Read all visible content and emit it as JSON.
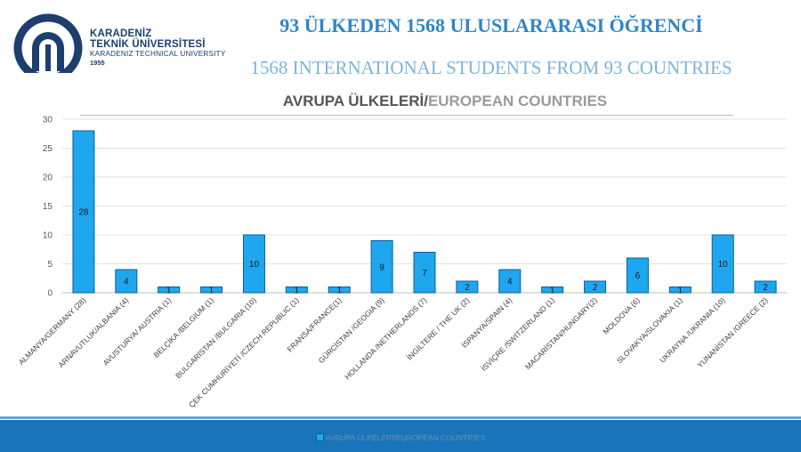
{
  "header": {
    "logo": {
      "line1": "KARADENİZ",
      "line2": "TEKNİK ÜNİVERSİTESİ",
      "line3": "KARADENIZ TECHNICAL UNIVERSITY",
      "line4": "1955"
    },
    "title_tr": "93 ÜLKEDEN 1568 ULUSLARARASI ÖĞRENCİ",
    "title_en": "1568 INTERNATIONAL STUDENTS FROM 93 COUNTRIES"
  },
  "colors": {
    "bar_fill": "#1ea7ee",
    "bar_stroke": "#0b5e9a",
    "title_tr": "#2e86c9",
    "title_en": "#7db3da",
    "footer": "#1b75bb"
  },
  "chart_data": {
    "type": "bar",
    "title_tr": "AVRUPA ÜLKELERİ/",
    "title_en": "EUROPEAN COUNTRIES",
    "categories": [
      "ALMANYA/GERMANY (28)",
      "ARNAVUTLUK/ALBANIA (4)",
      "AVUSTURYA/ AUSTRIA (1)",
      "BELÇİKA /BELGIUM (1)",
      "BULGARİSTAN /BULGARIA (10)",
      "ÇEK CUMHURİYETİ /CZECH REPUBLIC (1)",
      "FRANSA/FRANCE(1)",
      "GÜRCİSTAN /GEOGIA (9)",
      "HOLLANDA /NETHERLANDS (7)",
      "İNGİLTERE / THE UK (2)",
      "İSPANYA/SPAIN (4)",
      "İSVİÇRE /SWITZERLAND (1)",
      "MACARİSTAN/HUNGARY(2)",
      "MOLDOVA (6)",
      "SLOVAKYA/SLOVAKIA (1)",
      "UKRAYNA /UKRANIA (10)",
      "YUNANİSTAN /GREECE (2)"
    ],
    "series": [
      {
        "name": "AVRUPA ÜLKELERİ/EUROPEAN COUNTRIES",
        "values": [
          28,
          4,
          1,
          1,
          10,
          1,
          1,
          9,
          7,
          2,
          4,
          1,
          2,
          6,
          1,
          10,
          2
        ]
      }
    ],
    "ylim": [
      0,
      30
    ],
    "yticks": [
      0,
      5,
      10,
      15,
      20,
      25,
      30
    ],
    "grid": true,
    "legend": "bottom"
  }
}
